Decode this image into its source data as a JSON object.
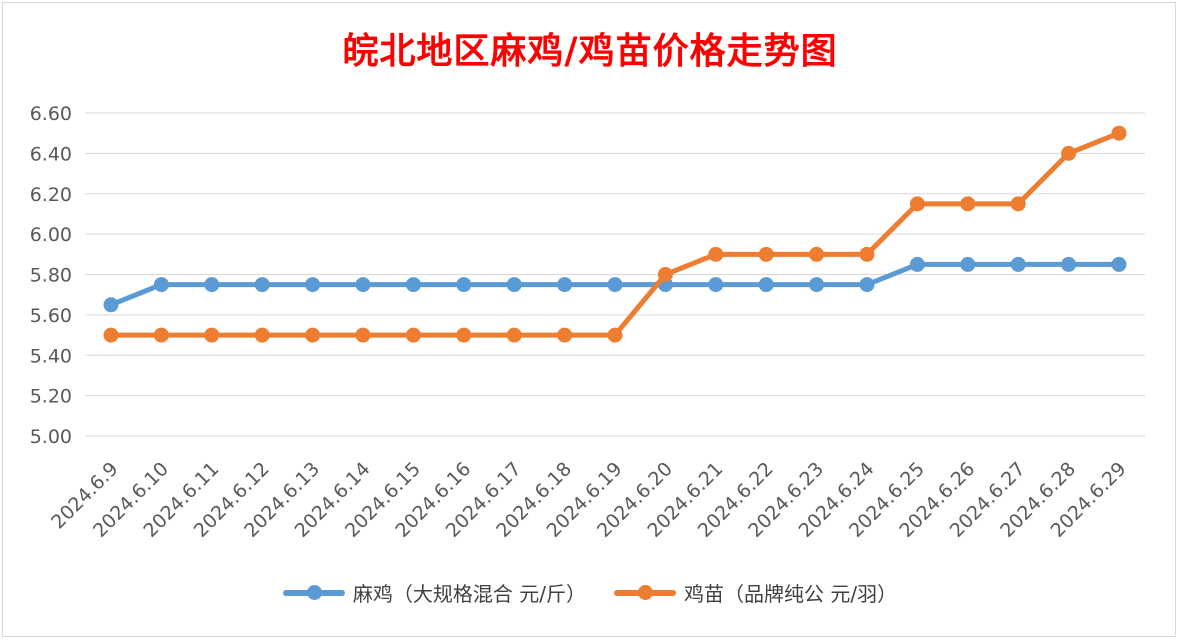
{
  "chart_data": {
    "type": "line",
    "title": "皖北地区麻鸡/鸡苗价格走势图",
    "categories": [
      "2024.6.9",
      "2024.6.10",
      "2024.6.11",
      "2024.6.12",
      "2024.6.13",
      "2024.6.14",
      "2024.6.15",
      "2024.6.16",
      "2024.6.17",
      "2024.6.18",
      "2024.6.19",
      "2024.6.20",
      "2024.6.21",
      "2024.6.22",
      "2024.6.23",
      "2024.6.24",
      "2024.6.25",
      "2024.6.26",
      "2024.6.27",
      "2024.6.28",
      "2024.6.29"
    ],
    "series": [
      {
        "name": "麻鸡（大规格混合 元/斤）",
        "color": "#5b9bd5",
        "values": [
          5.65,
          5.75,
          5.75,
          5.75,
          5.75,
          5.75,
          5.75,
          5.75,
          5.75,
          5.75,
          5.75,
          5.75,
          5.75,
          5.75,
          5.75,
          5.75,
          5.85,
          5.85,
          5.85,
          5.85,
          5.85
        ]
      },
      {
        "name": "鸡苗（品牌纯公 元/羽）",
        "color": "#ed7d31",
        "values": [
          5.5,
          5.5,
          5.5,
          5.5,
          5.5,
          5.5,
          5.5,
          5.5,
          5.5,
          5.5,
          5.5,
          5.8,
          5.9,
          5.9,
          5.9,
          5.9,
          6.15,
          6.15,
          6.15,
          6.4,
          6.5
        ]
      }
    ],
    "yticks": [
      "5.00",
      "5.20",
      "5.40",
      "5.60",
      "5.80",
      "6.00",
      "6.20",
      "6.40",
      "6.60"
    ],
    "ylim": [
      5.0,
      6.6
    ],
    "grid": true,
    "legend": "bottom"
  }
}
